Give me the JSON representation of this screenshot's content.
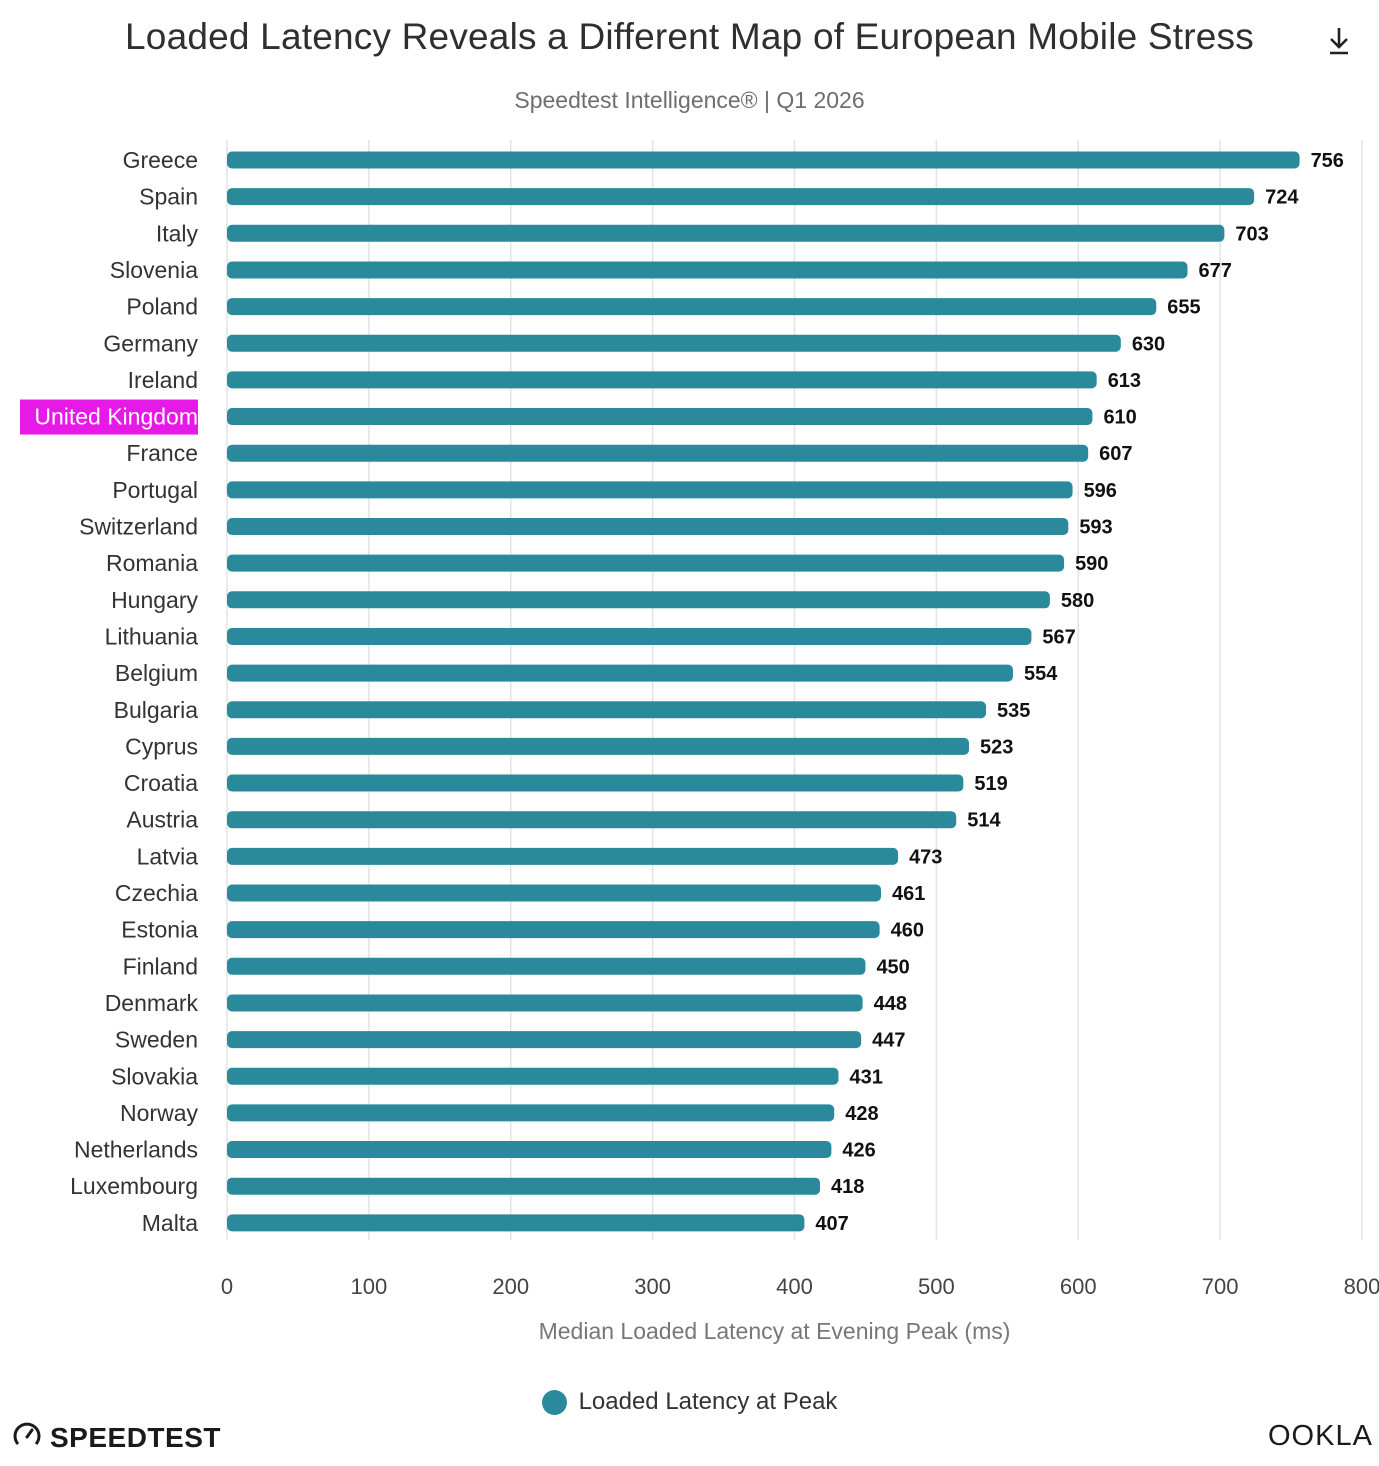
{
  "header": {
    "title": "Loaded Latency Reveals a Different Map of European Mobile Stress",
    "subtitle": "Speedtest Intelligence® | Q1 2026",
    "download_icon": "download-icon"
  },
  "chart_data": {
    "type": "bar",
    "orientation": "horizontal",
    "title": "Loaded Latency Reveals a Different Map of European Mobile Stress",
    "subtitle": "Speedtest Intelligence® | Q1 2026",
    "xlabel": "Median Loaded Latency at Evening Peak (ms)",
    "ylabel": "",
    "xlim": [
      0,
      800
    ],
    "xticks": [
      "0",
      "100",
      "200",
      "300",
      "400",
      "500",
      "600",
      "700",
      "800"
    ],
    "grid": true,
    "legend_position": "bottom",
    "categories": [
      "Greece",
      "Spain",
      "Italy",
      "Slovenia",
      "Poland",
      "Germany",
      "Ireland",
      "United Kingdom",
      "France",
      "Portugal",
      "Switzerland",
      "Romania",
      "Hungary",
      "Lithuania",
      "Belgium",
      "Bulgaria",
      "Cyprus",
      "Croatia",
      "Austria",
      "Latvia",
      "Czechia",
      "Estonia",
      "Finland",
      "Denmark",
      "Sweden",
      "Slovakia",
      "Norway",
      "Netherlands",
      "Luxembourg",
      "Malta"
    ],
    "series": [
      {
        "name": "Loaded Latency at Peak",
        "color": "#2a8a9c",
        "values": [
          756,
          724,
          703,
          677,
          655,
          630,
          613,
          610,
          607,
          596,
          593,
          590,
          580,
          567,
          554,
          535,
          523,
          519,
          514,
          473,
          461,
          460,
          450,
          448,
          447,
          431,
          428,
          426,
          418,
          407
        ]
      }
    ],
    "highlight": {
      "category": "United Kingdom",
      "background": "#e619e6",
      "text_color": "#ffffff"
    }
  },
  "footer": {
    "left_brand": "SPEEDTEST",
    "left_icon": "speedometer-icon",
    "right_brand": "OOKLA"
  }
}
